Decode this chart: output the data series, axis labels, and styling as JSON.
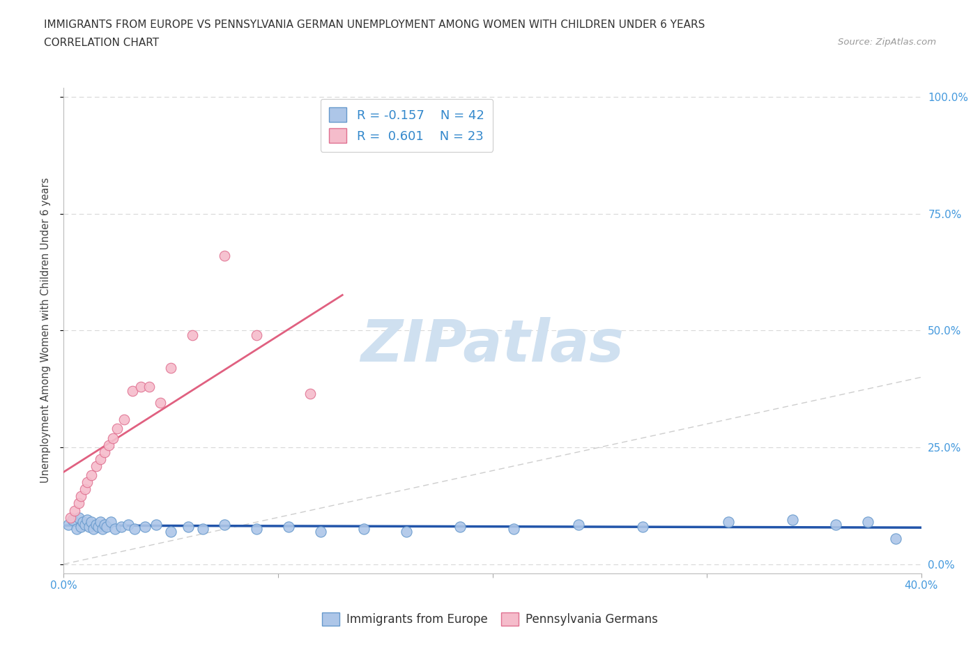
{
  "title_line1": "IMMIGRANTS FROM EUROPE VS PENNSYLVANIA GERMAN UNEMPLOYMENT AMONG WOMEN WITH CHILDREN UNDER 6 YEARS",
  "title_line2": "CORRELATION CHART",
  "source_text": "Source: ZipAtlas.com",
  "ylabel": "Unemployment Among Women with Children Under 6 years",
  "watermark": "ZIPatlas",
  "legend_label_blue": "Immigrants from Europe",
  "legend_label_pink": "Pennsylvania Germans",
  "r_blue": -0.157,
  "n_blue": 42,
  "r_pink": 0.601,
  "n_pink": 23,
  "xlim": [
    0.0,
    0.4
  ],
  "ylim": [
    -0.02,
    1.02
  ],
  "ytick_positions": [
    0.0,
    0.25,
    0.5,
    0.75,
    1.0
  ],
  "ytick_labels": [
    "0.0%",
    "25.0%",
    "50.0%",
    "75.0%",
    "100.0%"
  ],
  "xtick_positions": [
    0.0,
    0.1,
    0.2,
    0.3,
    0.4
  ],
  "xtick_labels": [
    "0.0%",
    "",
    "",
    "",
    "40.0%"
  ],
  "color_blue_fill": "#adc6e8",
  "color_blue_edge": "#6699cc",
  "color_pink_fill": "#f5bccb",
  "color_pink_edge": "#e07090",
  "color_blue_line": "#2255aa",
  "color_pink_line": "#e06080",
  "color_diag_line": "#c8c8c8",
  "grid_color": "#d8d8d8",
  "title_color": "#333333",
  "axis_label_color": "#444444",
  "tick_label_color_right": "#4499dd",
  "tick_label_color_bottom": "#4499dd",
  "background_color": "#ffffff",
  "watermark_color": "#cfe0f0",
  "blue_x": [
    0.002,
    0.004,
    0.006,
    0.007,
    0.008,
    0.009,
    0.01,
    0.011,
    0.012,
    0.013,
    0.014,
    0.015,
    0.016,
    0.017,
    0.018,
    0.019,
    0.02,
    0.022,
    0.024,
    0.027,
    0.03,
    0.033,
    0.038,
    0.043,
    0.05,
    0.058,
    0.065,
    0.075,
    0.09,
    0.105,
    0.12,
    0.14,
    0.16,
    0.185,
    0.21,
    0.24,
    0.27,
    0.31,
    0.34,
    0.36,
    0.375,
    0.388
  ],
  "blue_y": [
    0.085,
    0.095,
    0.075,
    0.1,
    0.08,
    0.09,
    0.085,
    0.095,
    0.08,
    0.09,
    0.075,
    0.085,
    0.08,
    0.09,
    0.075,
    0.085,
    0.08,
    0.09,
    0.075,
    0.08,
    0.085,
    0.075,
    0.08,
    0.085,
    0.07,
    0.08,
    0.075,
    0.085,
    0.075,
    0.08,
    0.07,
    0.075,
    0.07,
    0.08,
    0.075,
    0.085,
    0.08,
    0.09,
    0.095,
    0.085,
    0.09,
    0.055
  ],
  "pink_x": [
    0.003,
    0.005,
    0.007,
    0.008,
    0.01,
    0.011,
    0.013,
    0.015,
    0.017,
    0.019,
    0.021,
    0.023,
    0.025,
    0.028,
    0.032,
    0.036,
    0.04,
    0.045,
    0.05,
    0.06,
    0.075,
    0.09,
    0.115
  ],
  "pink_y": [
    0.1,
    0.115,
    0.13,
    0.145,
    0.16,
    0.175,
    0.19,
    0.21,
    0.225,
    0.24,
    0.255,
    0.27,
    0.29,
    0.31,
    0.37,
    0.38,
    0.38,
    0.345,
    0.42,
    0.49,
    0.66,
    0.49,
    0.365
  ],
  "marker_size_blue": 120,
  "marker_size_pink": 110
}
